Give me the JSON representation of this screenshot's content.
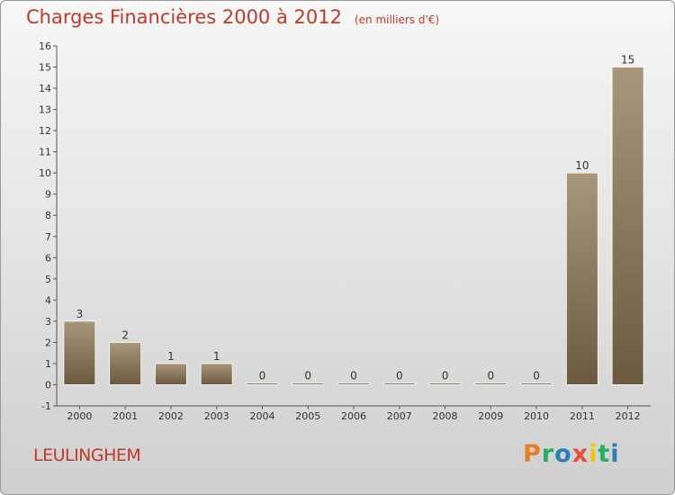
{
  "title": "Charges Financières 2000 à 2012",
  "subtitle": "(en milliers d'€)",
  "commune": "LEULINGHEM",
  "logo": [
    "P",
    "r",
    "o",
    "x",
    "i",
    "t",
    "i"
  ],
  "colors": {
    "title": "#c0392b",
    "bar_light": "#a8977a",
    "bar_dark": "#6b5a3f",
    "logo": [
      "#e67e22",
      "#27ae60",
      "#2980b9",
      "#e74c3c",
      "#f1c40f",
      "#27ae60",
      "#2980b9"
    ]
  },
  "chart_data": {
    "type": "bar",
    "categories": [
      "2000",
      "2001",
      "2002",
      "2003",
      "2004",
      "2005",
      "2006",
      "2007",
      "2008",
      "2009",
      "2010",
      "2011",
      "2012"
    ],
    "values": [
      3,
      2,
      1,
      1,
      0,
      0,
      0,
      0,
      0,
      0,
      0,
      10,
      15
    ],
    "ylim": [
      -1,
      16
    ],
    "yticks": [
      -1,
      0,
      1,
      2,
      3,
      4,
      5,
      6,
      7,
      8,
      9,
      10,
      11,
      12,
      13,
      14,
      15,
      16
    ],
    "data_labels": true,
    "grid": false,
    "legend": "none"
  }
}
